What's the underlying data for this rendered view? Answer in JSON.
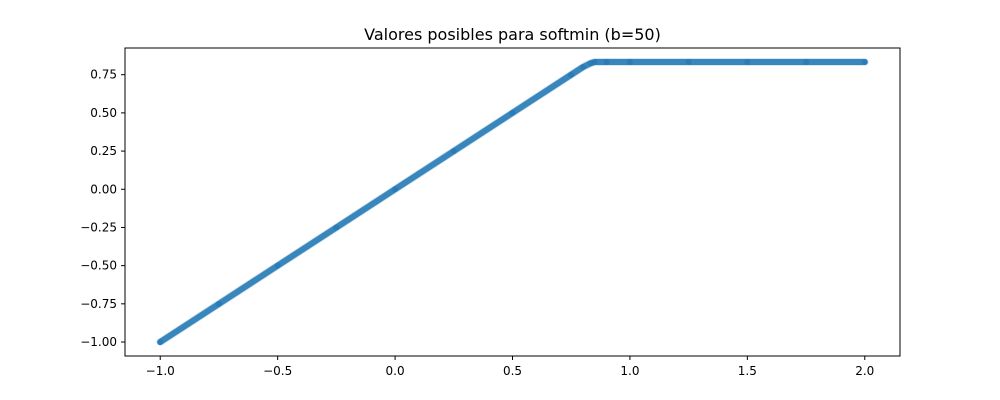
{
  "chart_data": {
    "type": "scatter",
    "title": "Valores posibles para softmin (b=50)",
    "xlabel": "",
    "ylabel": "",
    "xlim": [
      -1.15,
      2.15
    ],
    "ylim": [
      -1.0915,
      0.9248
    ],
    "grid": false,
    "legend": "none",
    "x_ticks": [
      -1.0,
      -0.5,
      0.0,
      0.5,
      1.0,
      1.5,
      2.0
    ],
    "x_tick_labels": [
      "−1.0",
      "−0.5",
      "0.0",
      "0.5",
      "1.0",
      "1.5",
      "2.0"
    ],
    "y_ticks": [
      -1.0,
      -0.75,
      -0.5,
      -0.25,
      0.0,
      0.25,
      0.5,
      0.75
    ],
    "y_tick_labels": [
      "−1.00",
      "−0.75",
      "−0.50",
      "−0.25",
      "0.00",
      "0.25",
      "0.50",
      "0.75"
    ],
    "series": [
      {
        "color": "#1f77b4",
        "x": [
          -1.0,
          -0.75,
          -0.5,
          -0.25,
          0.0,
          0.25,
          0.5,
          0.75,
          0.8,
          0.833,
          0.85,
          0.9,
          1.0,
          1.25,
          1.5,
          1.75,
          2.0
        ],
        "y": [
          -1.0,
          -0.75,
          -0.5,
          -0.25,
          0.0,
          0.25,
          0.5,
          0.75,
          0.8,
          0.825,
          0.833,
          0.833,
          0.833,
          0.833,
          0.833,
          0.833,
          0.833
        ]
      }
    ]
  }
}
